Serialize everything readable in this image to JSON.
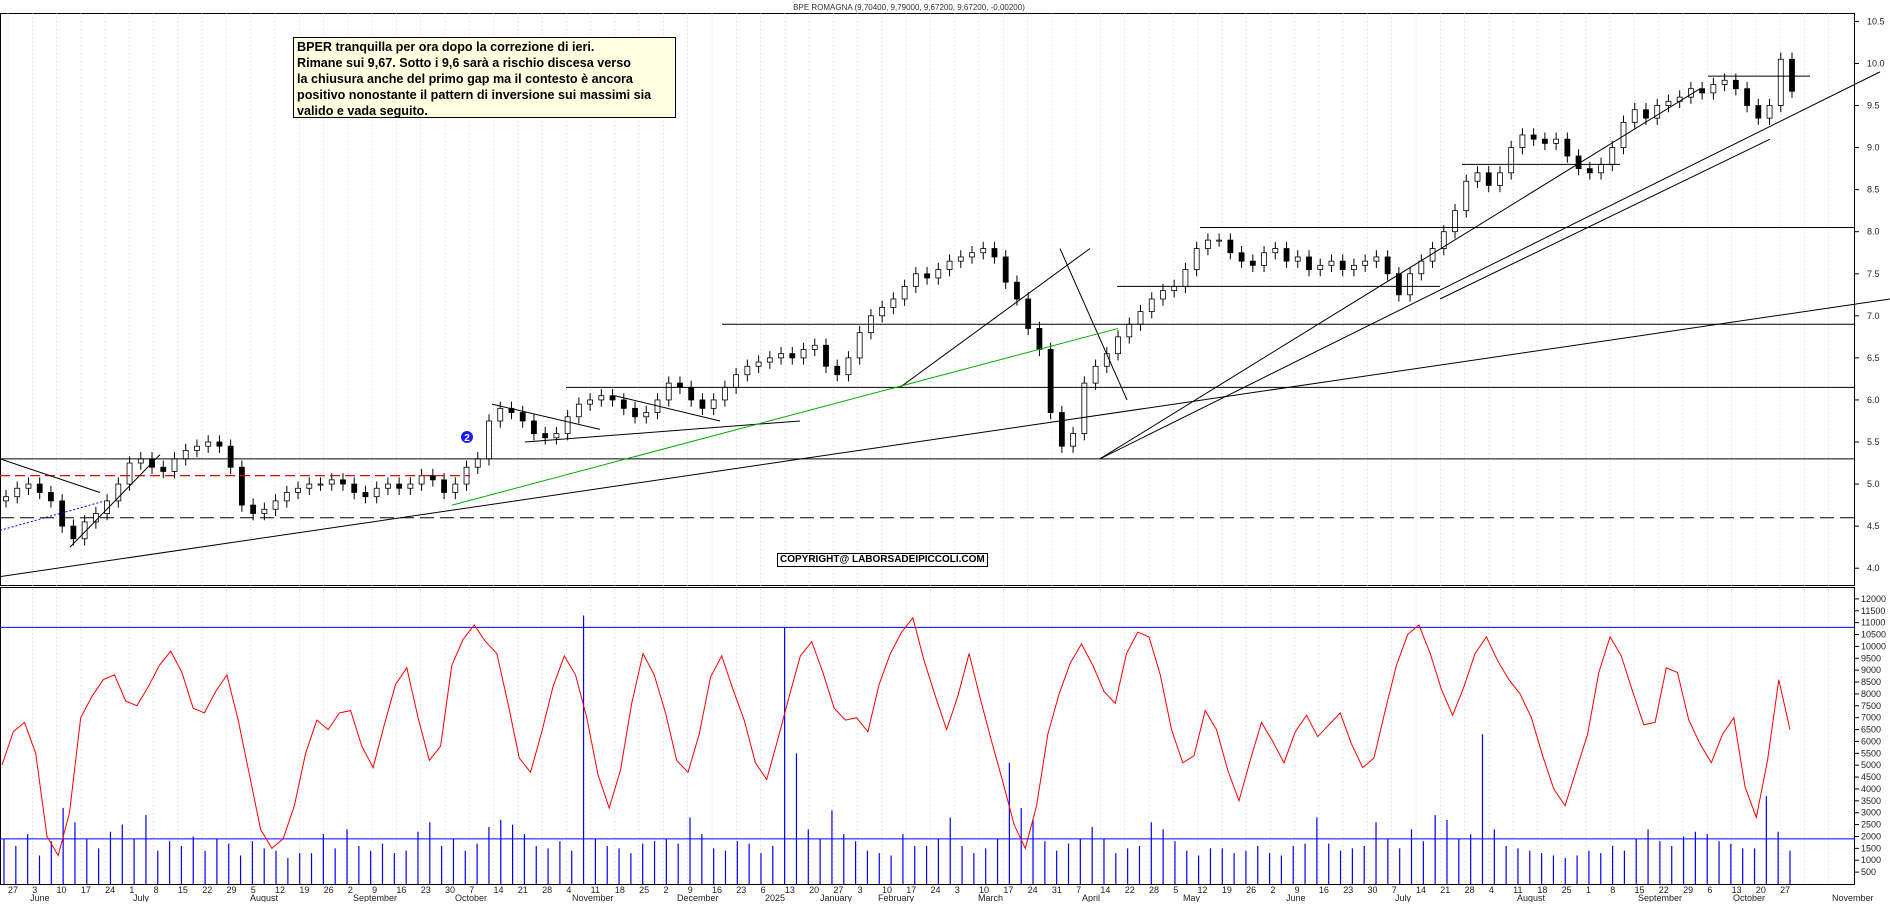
{
  "header": {
    "title": "BPE ROMAGNA (9,70400, 9,79000, 9,67200, 9,67200, -0,00200)"
  },
  "note": {
    "lines": [
      "BPER tranquilla per ora dopo la correzione di ieri.",
      "Rimane sui 9,67. Sotto i 9,6 sarà a rischio discesa verso",
      "la chiusura anche del primo gap ma il contesto è ancora",
      "positivo nonostante il pattern di inversione sui massimi sia",
      "valido e vada seguito."
    ]
  },
  "copyright": "COPYRIGHT@ LABORSADEIPICCOLI.COM",
  "marker_label": "2",
  "colors": {
    "candle": "#000000",
    "support_line": "#000000",
    "green_trendline": "#00aa00",
    "red_dashed_level": "#e00000",
    "blue_dotted": "#0000ff",
    "oscillator": "#ff0000",
    "volume": "#0000ff",
    "oscillator_levels": "#0000ff"
  },
  "chart_data": [
    {
      "type": "candlestick",
      "title": "BPE ROMAGNA",
      "ylim": [
        3.8,
        10.6
      ],
      "y_ticks": [
        "4.0",
        "4.5",
        "5.0",
        "5.5",
        "6.0",
        "6.5",
        "7.0",
        "7.5",
        "8.0",
        "8.5",
        "9.0",
        "9.5",
        "10.0",
        "10.5"
      ],
      "x_month_labels": [
        "June",
        "July",
        "August",
        "September",
        "October",
        "November",
        "December",
        "2025",
        "January",
        "February",
        "March",
        "April",
        "May",
        "June",
        "July",
        "August",
        "September",
        "October",
        "November"
      ],
      "x_day_labels": [
        "27",
        "3",
        "10",
        "17",
        "24",
        "1",
        "8",
        "15",
        "22",
        "29",
        "5",
        "12",
        "19",
        "26",
        "2",
        "9",
        "16",
        "23",
        "30",
        "7",
        "14",
        "21",
        "28",
        "4",
        "11",
        "18",
        "25",
        "2",
        "9",
        "16",
        "23",
        "6",
        "13",
        "20",
        "27",
        "3",
        "10",
        "17",
        "24",
        "3",
        "10",
        "17",
        "24",
        "31",
        "7",
        "14",
        "22",
        "28",
        "5",
        "12",
        "19",
        "26",
        "2",
        "9",
        "16",
        "23",
        "30",
        "7",
        "14",
        "21",
        "28",
        "4",
        "11",
        "18",
        "25",
        "1",
        "8",
        "15",
        "22",
        "29",
        "6",
        "13",
        "20",
        "27"
      ],
      "close_path": [
        4.85,
        4.95,
        5.0,
        4.9,
        4.8,
        4.5,
        4.35,
        4.55,
        4.65,
        4.8,
        5.0,
        5.25,
        5.3,
        5.2,
        5.15,
        5.3,
        5.4,
        5.45,
        5.5,
        5.45,
        5.2,
        4.75,
        4.65,
        4.7,
        4.8,
        4.9,
        4.95,
        5.0,
        5.0,
        5.05,
        5.0,
        4.9,
        4.85,
        4.95,
        5.0,
        4.95,
        5.0,
        5.1,
        5.05,
        4.9,
        5.0,
        5.2,
        5.3,
        5.75,
        5.9,
        5.85,
        5.75,
        5.6,
        5.55,
        5.6,
        5.8,
        5.95,
        6.0,
        6.05,
        6.0,
        5.9,
        5.8,
        5.85,
        6.0,
        6.2,
        6.15,
        6.0,
        5.9,
        6.0,
        6.15,
        6.3,
        6.4,
        6.45,
        6.5,
        6.55,
        6.5,
        6.6,
        6.65,
        6.4,
        6.3,
        6.5,
        6.8,
        7.0,
        7.1,
        7.2,
        7.35,
        7.5,
        7.45,
        7.55,
        7.65,
        7.7,
        7.75,
        7.8,
        7.7,
        7.4,
        7.2,
        6.85,
        6.6,
        5.85,
        5.45,
        5.6,
        6.2,
        6.4,
        6.55,
        6.75,
        6.9,
        7.05,
        7.2,
        7.3,
        7.35,
        7.55,
        7.8,
        7.9,
        7.9,
        7.75,
        7.65,
        7.6,
        7.75,
        7.8,
        7.65,
        7.7,
        7.55,
        7.6,
        7.65,
        7.55,
        7.6,
        7.65,
        7.7,
        7.5,
        7.25,
        7.5,
        7.65,
        7.8,
        8.0,
        8.25,
        8.6,
        8.7,
        8.55,
        8.7,
        9.0,
        9.15,
        9.1,
        9.05,
        9.1,
        8.9,
        8.75,
        8.7,
        8.8,
        9.0,
        9.3,
        9.45,
        9.35,
        9.5,
        9.55,
        9.6,
        9.7,
        9.65,
        9.75,
        9.8,
        9.7,
        9.5,
        9.35,
        9.5,
        10.05,
        9.67
      ],
      "series": [
        {
          "name": "price",
          "values": [
            4.85,
            9.67
          ]
        }
      ],
      "annotations": [
        "horizontal support/resistance levels at 4.6, 5.1, 5.3, 6.15, 6.9, 7.35, 8.05, 8.8, 9.85",
        "rising long-term trendline",
        "green trendline",
        "gap marker 2"
      ]
    },
    {
      "type": "line",
      "title": "",
      "ylim": [
        0,
        12500
      ],
      "y_ticks": [
        "500",
        "1000",
        "1500",
        "2000",
        "2500",
        "3000",
        "3500",
        "4000",
        "4500",
        "5000",
        "5500",
        "6000",
        "6500",
        "7000",
        "7500",
        "8000",
        "8500",
        "9000",
        "9500",
        "10000",
        "10500",
        "11000",
        "11500",
        "12000"
      ],
      "reference_levels": [
        1900,
        10800
      ],
      "series": [
        {
          "name": "oscillator",
          "values": [
            5000,
            6400,
            6800,
            5500,
            2000,
            1200,
            3000,
            7000,
            7900,
            8600,
            8800,
            7700,
            7500,
            8300,
            9200,
            9800,
            8900,
            7400,
            7200,
            8100,
            8800,
            6900,
            4600,
            2300,
            1500,
            1900,
            3300,
            5500,
            6900,
            6500,
            7200,
            7300,
            5800,
            4900,
            6700,
            8400,
            9100,
            7000,
            5200,
            5800,
            9200,
            10300,
            10900,
            10200,
            9700,
            7600,
            5300,
            4700,
            6400,
            8300,
            9600,
            8800,
            7000,
            4600,
            3200,
            4800,
            7600,
            9700,
            8800,
            7200,
            5200,
            4700,
            6300,
            8700,
            9600,
            8200,
            6900,
            5100,
            4400,
            6100,
            7900,
            9600,
            10200,
            8900,
            7400,
            6900,
            7000,
            6400,
            8400,
            9700,
            10600,
            11200,
            9400,
            7900,
            6500,
            7900,
            9700,
            7800,
            6000,
            4300,
            2500,
            1500,
            3300,
            6300,
            8000,
            9300,
            10100,
            9200,
            8100,
            7600,
            9700,
            10600,
            10400,
            8800,
            6500,
            5100,
            5400,
            7300,
            6500,
            4800,
            3500,
            5200,
            6800,
            6000,
            5100,
            6400,
            7100,
            6200,
            6700,
            7200,
            5900,
            4900,
            5300,
            7300,
            9200,
            10500,
            10900,
            9700,
            8200,
            7100,
            8300,
            9700,
            10400,
            9400,
            8600,
            8000,
            7000,
            5400,
            4000,
            3300,
            4800,
            6300,
            8900,
            10400,
            9600,
            8100,
            6700,
            6800,
            9100,
            8900,
            6900,
            5900,
            5100,
            6300,
            7000,
            4100,
            2800,
            5200,
            8600,
            6500
          ]
        },
        {
          "name": "volume",
          "values": [
            1900,
            1600,
            2100,
            1200,
            1800,
            3200,
            2600,
            1900,
            1500,
            2200,
            2500,
            1900,
            2900,
            1400,
            1800,
            1600,
            2000,
            1400,
            1900,
            1700,
            1200,
            1800,
            1500,
            1400,
            1100,
            1300,
            1300,
            2100,
            1500,
            2300,
            1600,
            1400,
            1700,
            1300,
            1400,
            2200,
            2600,
            1600,
            1900,
            1400,
            1700,
            2400,
            2700,
            2500,
            2100,
            1600,
            1500,
            1800,
            1400,
            11300,
            1900,
            1600,
            1500,
            1300,
            1700,
            1800,
            1900,
            1700,
            2800,
            2100,
            1500,
            1400,
            1800,
            1700,
            1300,
            1600,
            10800,
            5500,
            2300,
            1900,
            3100,
            2100,
            1800,
            1400,
            1300,
            1200,
            2100,
            1600,
            1600,
            1900,
            2800,
            1600,
            1300,
            1500,
            1900,
            5100,
            3200,
            2700,
            1800,
            1400,
            1700,
            1900,
            2400,
            1900,
            1300,
            1500,
            1600,
            2600,
            2300,
            1800,
            1400,
            1200,
            1500,
            1500,
            1300,
            1400,
            1600,
            1300,
            1200,
            1600,
            1700,
            2800,
            1700,
            1400,
            1500,
            1600,
            2600,
            1900,
            1500,
            2300,
            1800,
            2900,
            2700,
            1900,
            2100,
            6300,
            2300,
            1600,
            1500,
            1400,
            1300,
            1200,
            1100,
            1200,
            1400,
            1300,
            1600,
            1400,
            1900,
            2300,
            1800,
            1600,
            2000,
            2200,
            2100,
            1800,
            1700,
            1500,
            1500,
            3700,
            2200,
            1400
          ]
        }
      ]
    }
  ]
}
